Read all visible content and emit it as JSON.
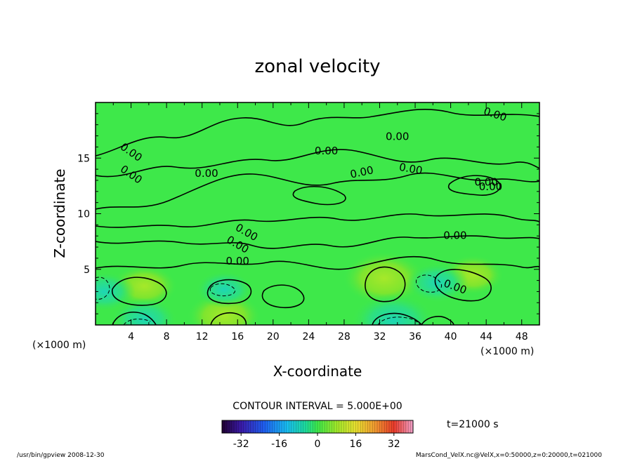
{
  "chart_data": {
    "type": "heatmap",
    "title": "zonal velocity",
    "xlabel": "X-coordinate",
    "ylabel": "Z-coordinate",
    "x_unit": "(×1000 m)",
    "y_unit": "(×1000 m)",
    "xlim": [
      0,
      50
    ],
    "ylim": [
      0,
      20
    ],
    "x_ticks": [
      4,
      8,
      12,
      16,
      20,
      24,
      28,
      32,
      36,
      40,
      44,
      48
    ],
    "y_ticks": [
      5,
      10,
      15
    ],
    "contour_interval": "CONTOUR INTERVAL = 5.000E+00",
    "time_label": "t=21000 s",
    "contour_labels": [
      "0.00"
    ],
    "colorbar": {
      "min": -40,
      "max": 40,
      "ticks": [
        -32,
        -16,
        0,
        16,
        32
      ]
    },
    "features": [
      {
        "x": 5.5,
        "z": 3.5,
        "sign": "positive",
        "value": 8
      },
      {
        "x": 14.5,
        "z": 0.8,
        "sign": "positive",
        "value": 10
      },
      {
        "x": 32.5,
        "z": 4.2,
        "sign": "positive",
        "value": 12
      },
      {
        "x": 42.5,
        "z": 4.5,
        "sign": "positive",
        "value": 7
      },
      {
        "x": 33.5,
        "z": 0.4,
        "sign": "negative",
        "value": -12
      },
      {
        "x": 5.5,
        "z": 0.5,
        "sign": "negative",
        "value": -8
      },
      {
        "x": 14.5,
        "z": 3.2,
        "sign": "negative",
        "value": -6
      },
      {
        "x": 1.0,
        "z": 3.0,
        "sign": "negative",
        "value": -7
      },
      {
        "x": 38.5,
        "z": 3.8,
        "sign": "negative",
        "value": -7
      }
    ]
  },
  "footer": {
    "left": "/usr/bin/gpview  2008-12-30",
    "right": "MarsCond_VelX.nc@VelX,x=0:50000,z=0:20000,t=021000"
  },
  "colors": {
    "background": "#ffffff",
    "field": "#3ee84a",
    "line": "#000000"
  }
}
